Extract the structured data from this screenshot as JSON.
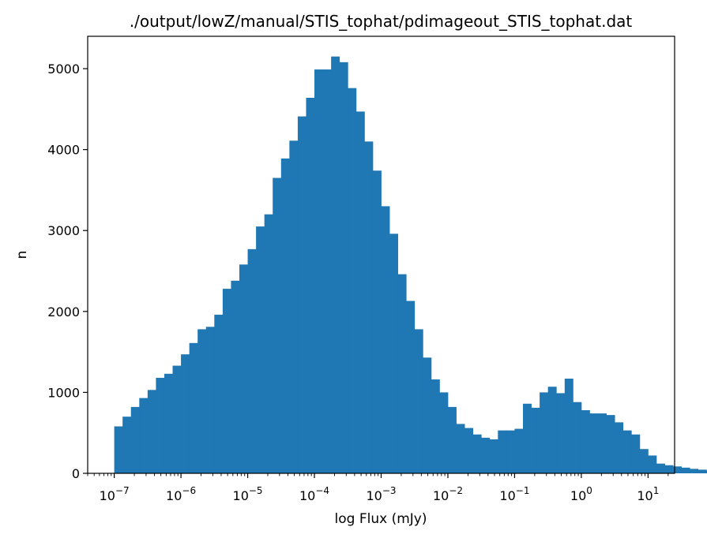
{
  "chart_data": {
    "type": "bar",
    "title": "./output/lowZ/manual/STIS_tophat/pdimageout_STIS_tophat.dat",
    "xlabel": "log Flux (mJy)",
    "ylabel": "n",
    "x_scale": "log",
    "xlim": [
      4e-08,
      25
    ],
    "ylim": [
      0,
      5400
    ],
    "bar_color": "#1f77b4",
    "x_ticks": [
      {
        "base": "10",
        "exp": "−7"
      },
      {
        "base": "10",
        "exp": "−6"
      },
      {
        "base": "10",
        "exp": "−5"
      },
      {
        "base": "10",
        "exp": "−4"
      },
      {
        "base": "10",
        "exp": "−3"
      },
      {
        "base": "10",
        "exp": "−2"
      },
      {
        "base": "10",
        "exp": "−1"
      },
      {
        "base": "10",
        "exp": "0"
      },
      {
        "base": "10",
        "exp": "1"
      }
    ],
    "y_ticks": [
      "0",
      "1000",
      "2000",
      "3000",
      "4000",
      "5000"
    ],
    "bin_start": 1e-07,
    "bins_per_decade": 8,
    "counts": [
      580,
      700,
      820,
      930,
      1030,
      1180,
      1230,
      1330,
      1470,
      1610,
      1780,
      1810,
      1960,
      2280,
      2380,
      2580,
      2770,
      3050,
      3200,
      3650,
      3890,
      4110,
      4410,
      4640,
      4990,
      4990,
      5150,
      5080,
      4760,
      4470,
      4100,
      3740,
      3300,
      2960,
      2460,
      2130,
      1780,
      1430,
      1160,
      1000,
      820,
      610,
      560,
      480,
      440,
      420,
      530,
      530,
      550,
      860,
      810,
      1000,
      1070,
      990,
      1170,
      880,
      780,
      740,
      740,
      720,
      630,
      530,
      480,
      300,
      220,
      120,
      100,
      85,
      70,
      55,
      45,
      30,
      15,
      5
    ]
  }
}
